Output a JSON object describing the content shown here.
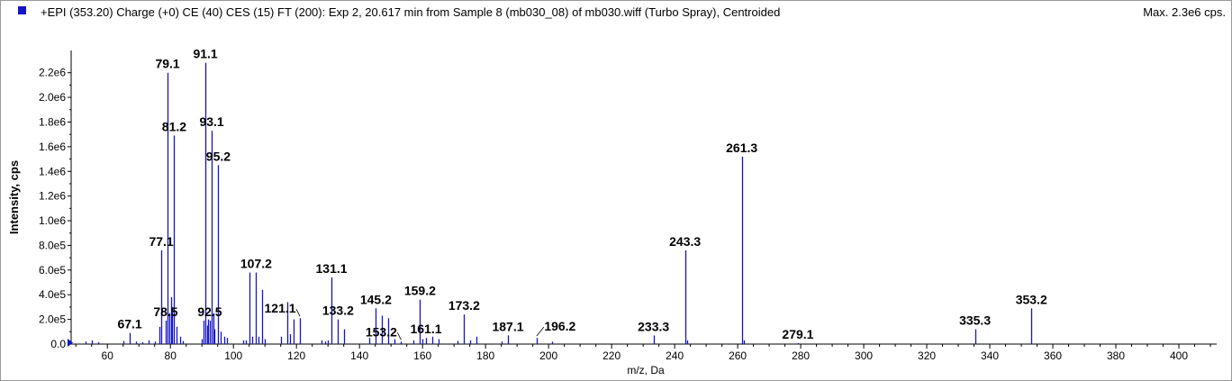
{
  "header": {
    "title": "+EPI (353.20) Charge (+0) CE (40) CES (15) FT (200): Exp 2, 20.617 min from Sample 8 (mb030_08) of mb030.wiff (Turbo Spray), Centroided",
    "max_label": "Max. 2.3e6 cps."
  },
  "colors": {
    "series": "#1414c8",
    "axis": "#000000",
    "legend_swatch": "#1414c8"
  },
  "chart_data": {
    "type": "bar",
    "title": "+EPI (353.20) Charge (+0) CE (40) CES (15) FT (200): Exp 2, 20.617 min from Sample 8 (mb030_08) of mb030.wiff (Turbo Spray), Centroided",
    "xlabel": "m/z, Da",
    "ylabel": "Intensity, cps",
    "xlim": [
      48.5,
      412
    ],
    "ylim": [
      0,
      2300000.0
    ],
    "x_ticks": [
      60,
      80,
      100,
      120,
      140,
      160,
      180,
      200,
      220,
      240,
      260,
      280,
      300,
      320,
      340,
      360,
      380,
      400
    ],
    "x_tick_labels": [
      "60",
      "80",
      "100",
      "120",
      "140",
      "160",
      "180",
      "200",
      "220",
      "240",
      "260",
      "280",
      "300",
      "320",
      "340",
      "360",
      "380",
      "400"
    ],
    "y_ticks": [
      0,
      200000,
      400000,
      600000,
      800000,
      1000000,
      1200000,
      1400000,
      1600000,
      1800000,
      2000000,
      2200000
    ],
    "y_tick_labels": [
      "0.0",
      "2.0e5",
      "4.0e5",
      "6.0e5",
      "8.0e5",
      "1.0e6",
      "1.2e6",
      "1.4e6",
      "1.6e6",
      "1.8e6",
      "2.0e6",
      "2.2e6"
    ],
    "grid": false,
    "peaks": [
      {
        "mz": 53.0,
        "intensity": 20000
      },
      {
        "mz": 55.1,
        "intensity": 30000
      },
      {
        "mz": 57.0,
        "intensity": 15000
      },
      {
        "mz": 65.0,
        "intensity": 25000
      },
      {
        "mz": 67.1,
        "intensity": 90000
      },
      {
        "mz": 69.0,
        "intensity": 20000
      },
      {
        "mz": 71.0,
        "intensity": 15000
      },
      {
        "mz": 73.0,
        "intensity": 30000
      },
      {
        "mz": 75.0,
        "intensity": 20000
      },
      {
        "mz": 76.5,
        "intensity": 140000
      },
      {
        "mz": 77.1,
        "intensity": 760000
      },
      {
        "mz": 78.5,
        "intensity": 190000
      },
      {
        "mz": 79.1,
        "intensity": 2200000
      },
      {
        "mz": 79.6,
        "intensity": 250000
      },
      {
        "mz": 80.2,
        "intensity": 380000
      },
      {
        "mz": 80.6,
        "intensity": 300000
      },
      {
        "mz": 81.2,
        "intensity": 1690000
      },
      {
        "mz": 82.0,
        "intensity": 140000
      },
      {
        "mz": 83.0,
        "intensity": 60000
      },
      {
        "mz": 84.0,
        "intensity": 25000
      },
      {
        "mz": 90.0,
        "intensity": 40000
      },
      {
        "mz": 90.6,
        "intensity": 190000
      },
      {
        "mz": 91.1,
        "intensity": 2280000
      },
      {
        "mz": 91.6,
        "intensity": 150000
      },
      {
        "mz": 92.0,
        "intensity": 200000
      },
      {
        "mz": 92.5,
        "intensity": 190000
      },
      {
        "mz": 93.1,
        "intensity": 1730000
      },
      {
        "mz": 93.6,
        "intensity": 250000
      },
      {
        "mz": 94.0,
        "intensity": 120000
      },
      {
        "mz": 95.2,
        "intensity": 1450000
      },
      {
        "mz": 96.0,
        "intensity": 100000
      },
      {
        "mz": 97.0,
        "intensity": 60000
      },
      {
        "mz": 98.0,
        "intensity": 50000
      },
      {
        "mz": 103.0,
        "intensity": 30000
      },
      {
        "mz": 104.0,
        "intensity": 30000
      },
      {
        "mz": 105.1,
        "intensity": 580000
      },
      {
        "mz": 106.0,
        "intensity": 60000
      },
      {
        "mz": 107.2,
        "intensity": 580000
      },
      {
        "mz": 108.0,
        "intensity": 60000
      },
      {
        "mz": 109.1,
        "intensity": 440000
      },
      {
        "mz": 110.0,
        "intensity": 40000
      },
      {
        "mz": 115.0,
        "intensity": 60000
      },
      {
        "mz": 117.1,
        "intensity": 340000
      },
      {
        "mz": 118.0,
        "intensity": 80000
      },
      {
        "mz": 119.1,
        "intensity": 200000
      },
      {
        "mz": 121.1,
        "intensity": 210000
      },
      {
        "mz": 128.0,
        "intensity": 30000
      },
      {
        "mz": 129.0,
        "intensity": 20000
      },
      {
        "mz": 130.0,
        "intensity": 30000
      },
      {
        "mz": 131.1,
        "intensity": 540000
      },
      {
        "mz": 133.2,
        "intensity": 200000
      },
      {
        "mz": 135.1,
        "intensity": 120000
      },
      {
        "mz": 143.0,
        "intensity": 50000
      },
      {
        "mz": 145.2,
        "intensity": 290000
      },
      {
        "mz": 147.1,
        "intensity": 230000
      },
      {
        "mz": 149.1,
        "intensity": 210000
      },
      {
        "mz": 151.0,
        "intensity": 40000
      },
      {
        "mz": 153.2,
        "intensity": 20000
      },
      {
        "mz": 157.1,
        "intensity": 30000
      },
      {
        "mz": 159.2,
        "intensity": 360000
      },
      {
        "mz": 160.0,
        "intensity": 40000
      },
      {
        "mz": 161.1,
        "intensity": 50000
      },
      {
        "mz": 163.0,
        "intensity": 60000
      },
      {
        "mz": 165.0,
        "intensity": 40000
      },
      {
        "mz": 171.0,
        "intensity": 25000
      },
      {
        "mz": 173.2,
        "intensity": 240000
      },
      {
        "mz": 175.0,
        "intensity": 30000
      },
      {
        "mz": 177.0,
        "intensity": 60000
      },
      {
        "mz": 185.0,
        "intensity": 20000
      },
      {
        "mz": 187.1,
        "intensity": 70000
      },
      {
        "mz": 196.2,
        "intensity": 50000
      },
      {
        "mz": 201.0,
        "intensity": 20000
      },
      {
        "mz": 233.3,
        "intensity": 70000
      },
      {
        "mz": 243.3,
        "intensity": 760000
      },
      {
        "mz": 244.0,
        "intensity": 30000
      },
      {
        "mz": 261.3,
        "intensity": 1520000
      },
      {
        "mz": 262.0,
        "intensity": 30000
      },
      {
        "mz": 279.1,
        "intensity": 8000
      },
      {
        "mz": 335.3,
        "intensity": 120000
      },
      {
        "mz": 353.2,
        "intensity": 290000
      }
    ],
    "annotations": [
      {
        "text": "67.1",
        "mz": 67.1,
        "intensity": 90000
      },
      {
        "text": "77.1",
        "mz": 77.1,
        "intensity": 760000
      },
      {
        "text": "78.5",
        "mz": 78.5,
        "intensity": 190000
      },
      {
        "text": "79.1",
        "mz": 79.1,
        "intensity": 2200000
      },
      {
        "text": "81.2",
        "mz": 81.2,
        "intensity": 1690000
      },
      {
        "text": "91.1",
        "mz": 91.1,
        "intensity": 2280000
      },
      {
        "text": "92.5",
        "mz": 92.5,
        "intensity": 190000
      },
      {
        "text": "93.1",
        "mz": 93.1,
        "intensity": 1730000
      },
      {
        "text": "95.2",
        "mz": 95.2,
        "intensity": 1450000
      },
      {
        "text": "107.2",
        "mz": 107.2,
        "intensity": 580000
      },
      {
        "text": "121.1",
        "mz": 121.1,
        "intensity": 210000,
        "leader": true
      },
      {
        "text": "131.1",
        "mz": 131.1,
        "intensity": 540000
      },
      {
        "text": "133.2",
        "mz": 133.2,
        "intensity": 200000
      },
      {
        "text": "145.2",
        "mz": 145.2,
        "intensity": 290000
      },
      {
        "text": "153.2",
        "mz": 153.2,
        "intensity": 20000,
        "leader": true
      },
      {
        "text": "159.2",
        "mz": 159.2,
        "intensity": 360000
      },
      {
        "text": "161.1",
        "mz": 161.1,
        "intensity": 50000
      },
      {
        "text": "173.2",
        "mz": 173.2,
        "intensity": 240000
      },
      {
        "text": "187.1",
        "mz": 187.1,
        "intensity": 70000
      },
      {
        "text": "196.2",
        "mz": 196.2,
        "intensity": 50000,
        "leader": true
      },
      {
        "text": "233.3",
        "mz": 233.3,
        "intensity": 70000
      },
      {
        "text": "243.3",
        "mz": 243.3,
        "intensity": 760000
      },
      {
        "text": "261.3",
        "mz": 261.3,
        "intensity": 1520000
      },
      {
        "text": "279.1",
        "mz": 279.1,
        "intensity": 8000
      },
      {
        "text": "335.3",
        "mz": 335.3,
        "intensity": 120000
      },
      {
        "text": "353.2",
        "mz": 353.2,
        "intensity": 290000
      }
    ]
  }
}
